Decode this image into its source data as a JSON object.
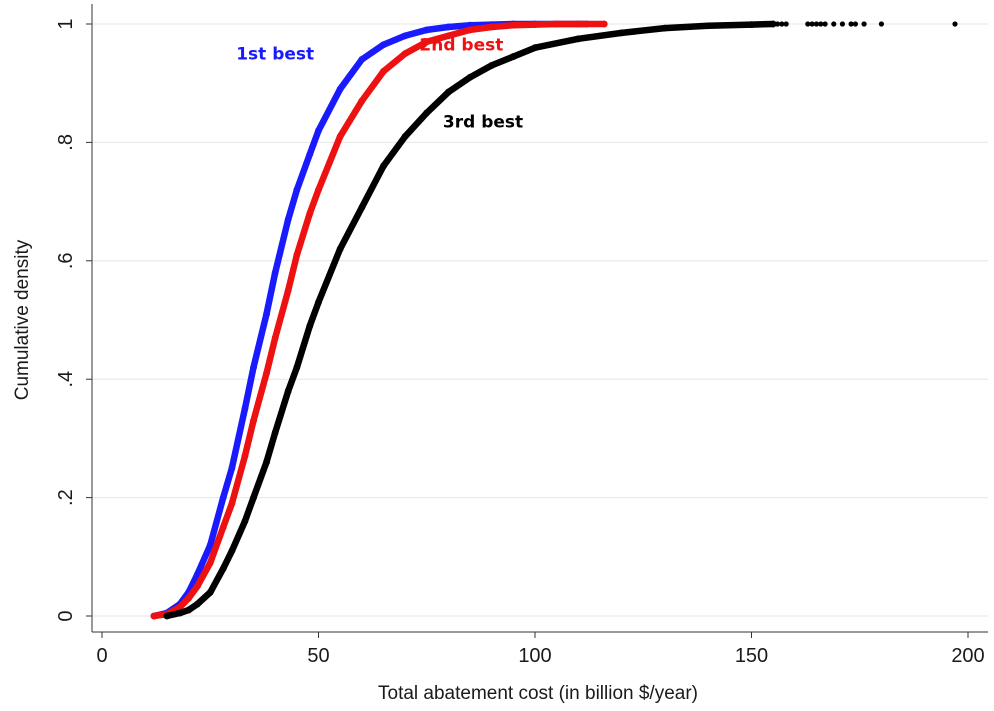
{
  "chart_data": {
    "type": "scatter",
    "title": "",
    "xlabel": "Total abatement cost (in billion $/year)",
    "ylabel": "Cumulative density",
    "xlim": [
      0,
      200
    ],
    "ylim": [
      0,
      1
    ],
    "x_ticks": [
      0,
      50,
      100,
      150,
      200
    ],
    "x_tick_labels": [
      "0",
      "50",
      "100",
      "150",
      "200"
    ],
    "y_ticks": [
      0,
      0.2,
      0.4,
      0.6,
      0.8,
      1
    ],
    "y_tick_labels": [
      "0",
      ".2",
      ".4",
      ".6",
      ".8",
      "1"
    ],
    "grid": "horizontal",
    "legend": "none",
    "series": [
      {
        "name": "1st best",
        "color": "#1a1aff",
        "points": [
          [
            12,
            0.0
          ],
          [
            15,
            0.005
          ],
          [
            18,
            0.02
          ],
          [
            20,
            0.04
          ],
          [
            22,
            0.07
          ],
          [
            25,
            0.12
          ],
          [
            28,
            0.2
          ],
          [
            30,
            0.25
          ],
          [
            33,
            0.35
          ],
          [
            35,
            0.42
          ],
          [
            38,
            0.51
          ],
          [
            40,
            0.58
          ],
          [
            43,
            0.67
          ],
          [
            45,
            0.72
          ],
          [
            48,
            0.78
          ],
          [
            50,
            0.82
          ],
          [
            55,
            0.89
          ],
          [
            60,
            0.94
          ],
          [
            65,
            0.965
          ],
          [
            70,
            0.98
          ],
          [
            75,
            0.99
          ],
          [
            80,
            0.995
          ],
          [
            85,
            0.998
          ],
          [
            90,
            0.999
          ],
          [
            95,
            1.0
          ],
          [
            100,
            1.0
          ],
          [
            105,
            1.0
          ],
          [
            110,
            1.0
          ],
          [
            112,
            1.0
          ]
        ],
        "outliers": [
          96,
          98,
          100,
          101,
          103,
          104,
          106,
          108,
          110,
          112
        ],
        "label_x": 40,
        "label_y": 0.94
      },
      {
        "name": "2nd best",
        "color": "#ee1111",
        "points": [
          [
            12,
            0.0
          ],
          [
            15,
            0.003
          ],
          [
            18,
            0.015
          ],
          [
            20,
            0.03
          ],
          [
            22,
            0.05
          ],
          [
            25,
            0.09
          ],
          [
            28,
            0.15
          ],
          [
            30,
            0.19
          ],
          [
            33,
            0.27
          ],
          [
            35,
            0.33
          ],
          [
            38,
            0.41
          ],
          [
            40,
            0.47
          ],
          [
            43,
            0.55
          ],
          [
            45,
            0.61
          ],
          [
            48,
            0.68
          ],
          [
            50,
            0.72
          ],
          [
            55,
            0.81
          ],
          [
            60,
            0.87
          ],
          [
            65,
            0.92
          ],
          [
            70,
            0.95
          ],
          [
            75,
            0.97
          ],
          [
            80,
            0.98
          ],
          [
            85,
            0.99
          ],
          [
            90,
            0.995
          ],
          [
            95,
            0.998
          ],
          [
            100,
            0.999
          ],
          [
            105,
            1.0
          ],
          [
            110,
            1.0
          ],
          [
            116,
            1.0
          ]
        ],
        "outliers": [
          104,
          106,
          107,
          109,
          110,
          111,
          112,
          113,
          114,
          115,
          116
        ],
        "label_x": 83,
        "label_y": 0.955
      },
      {
        "name": "3rd best",
        "color": "#000000",
        "points": [
          [
            15,
            0.0
          ],
          [
            18,
            0.005
          ],
          [
            20,
            0.01
          ],
          [
            22,
            0.02
          ],
          [
            25,
            0.04
          ],
          [
            28,
            0.08
          ],
          [
            30,
            0.11
          ],
          [
            33,
            0.16
          ],
          [
            35,
            0.2
          ],
          [
            38,
            0.26
          ],
          [
            40,
            0.31
          ],
          [
            43,
            0.38
          ],
          [
            45,
            0.42
          ],
          [
            48,
            0.49
          ],
          [
            50,
            0.53
          ],
          [
            55,
            0.62
          ],
          [
            60,
            0.69
          ],
          [
            65,
            0.76
          ],
          [
            70,
            0.81
          ],
          [
            75,
            0.85
          ],
          [
            80,
            0.885
          ],
          [
            85,
            0.91
          ],
          [
            90,
            0.93
          ],
          [
            95,
            0.945
          ],
          [
            100,
            0.96
          ],
          [
            110,
            0.975
          ],
          [
            120,
            0.985
          ],
          [
            130,
            0.993
          ],
          [
            140,
            0.997
          ],
          [
            150,
            0.999
          ],
          [
            155,
            1.0
          ]
        ],
        "outliers": [
          156,
          157,
          158,
          163,
          164,
          165,
          166,
          167,
          169,
          171,
          173,
          174,
          176,
          180,
          197
        ],
        "label_x": 88,
        "label_y": 0.825
      }
    ]
  }
}
